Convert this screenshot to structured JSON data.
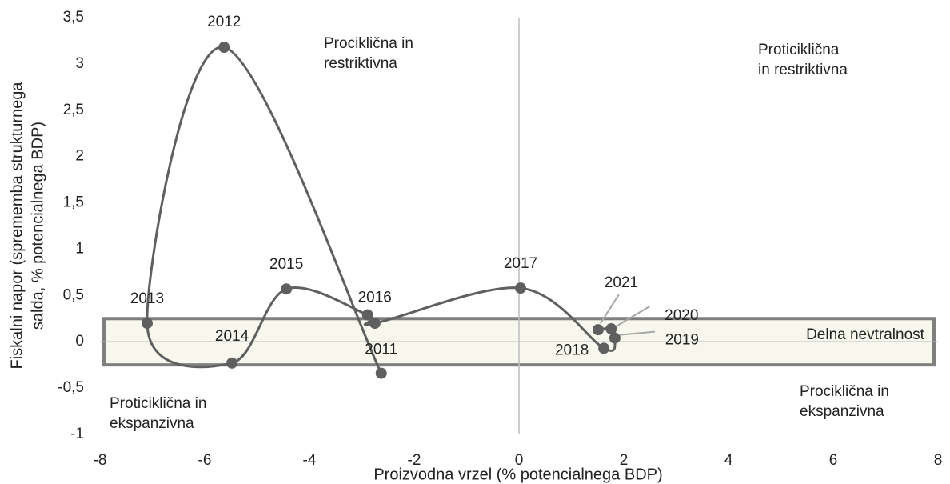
{
  "chart_data": {
    "type": "scatter",
    "x_label": "Proizvodna vrzel (% potencialnega BDP)",
    "y_label": [
      "Fiskalni napor (sprememba strukturnega",
      "salda, % potencialnega BDP)"
    ],
    "xlim": [
      -8,
      8
    ],
    "ylim": [
      -1,
      3.5
    ],
    "xticks": [
      -8,
      -6,
      -4,
      -2,
      0,
      2,
      4,
      6,
      8
    ],
    "yticks": [
      {
        "value": -1,
        "label": "-1"
      },
      {
        "value": -0.5,
        "label": "-0,5"
      },
      {
        "value": 0,
        "label": "0"
      },
      {
        "value": 0.5,
        "label": "0,5"
      },
      {
        "value": 1,
        "label": "1"
      },
      {
        "value": 1.5,
        "label": "1,5"
      },
      {
        "value": 2,
        "label": "2"
      },
      {
        "value": 2.5,
        "label": "2,5"
      },
      {
        "value": 3,
        "label": "3"
      },
      {
        "value": 3.5,
        "label": "3,5"
      }
    ],
    "series": [
      {
        "color": "#5f5f5f",
        "labels": [
          "2011",
          "2012",
          "2013",
          "2014",
          "2015",
          "2016",
          null,
          "2017",
          "2018",
          "2019",
          "2020",
          "2021"
        ],
        "x": [
          -2.63,
          -5.63,
          -7.1,
          -5.48,
          -4.44,
          -2.89,
          -2.75,
          0.03,
          1.62,
          1.83,
          1.76,
          1.51
        ],
        "values": [
          -0.34,
          3.18,
          0.2,
          -0.23,
          0.57,
          0.29,
          0.2,
          0.58,
          -0.07,
          0.04,
          0.14,
          0.13
        ]
      }
    ],
    "band": {
      "label": "Delna nevtralnost",
      "ymin": -0.25,
      "ymax": 0.25
    },
    "annotations": [
      [
        "Prociklična in",
        "restriktivna"
      ],
      [
        "Proticiklična",
        "in restriktivna"
      ],
      [
        "Proticiklična in",
        "ekspanzivna"
      ],
      [
        "Prociklična in",
        "ekspanzivna"
      ]
    ]
  }
}
